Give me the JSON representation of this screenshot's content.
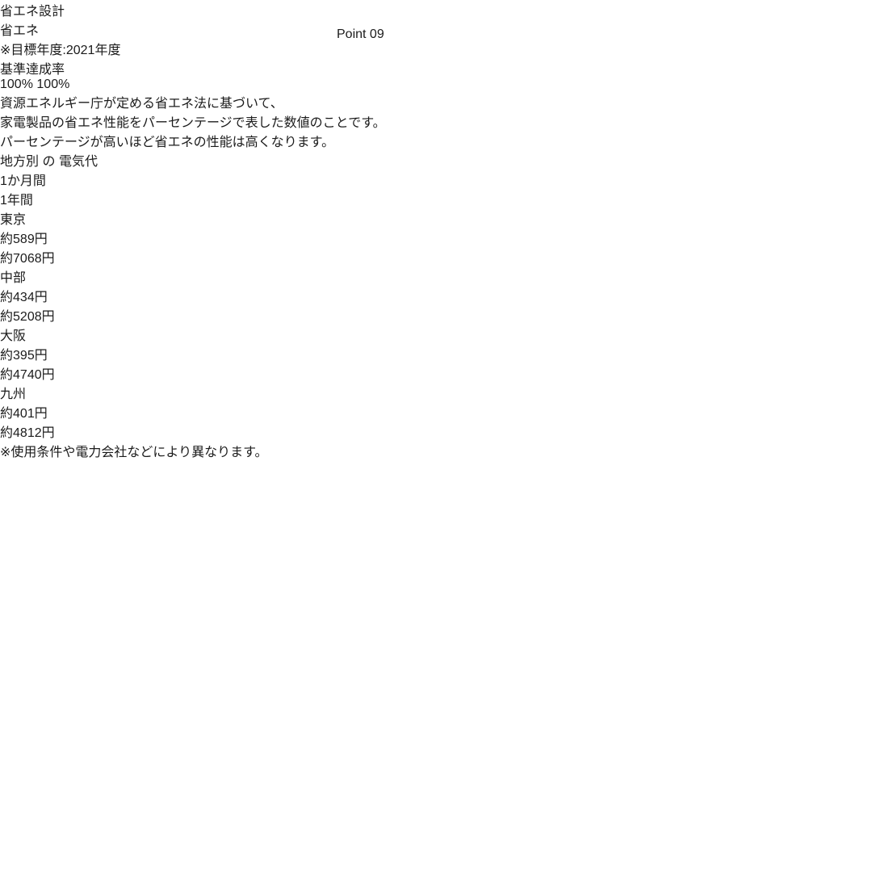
{
  "badge": {
    "point": "Point",
    "number": "09"
  },
  "title": "省エネ設計",
  "banner": {
    "label": "省エネ",
    "note": "※目標年度:2021年度",
    "sublabel": "基準達成率",
    "value": "100",
    "unit": "%"
  },
  "description": {
    "line1": "資源エネルギー庁が定める省エネ法に基づいて、",
    "line2": "家電製品の省エネ性能をパーセンテージで表した数値のことです。",
    "line3": "パーセンテージが高いほど省エネの性能は高くなります。"
  },
  "table": {
    "title_part1": "地方別",
    "title_part2": "の",
    "title_part3": "電気代",
    "headers": {
      "month": "1か月間",
      "year": "1年間"
    },
    "approx": "約",
    "yen": "円",
    "rows": [
      {
        "region": "東京",
        "month": "589",
        "year": "7068"
      },
      {
        "region": "中部",
        "month": "434",
        "year": "5208"
      },
      {
        "region": "大阪",
        "month": "395",
        "year": "4740"
      },
      {
        "region": "九州",
        "month": "401",
        "year": "4812"
      }
    ]
  },
  "footnote": "※使用条件や電力会社などにより異なります。",
  "chart_data": {
    "type": "table",
    "title": "地方別の電気代",
    "columns": [
      "地方",
      "1か月間",
      "1年間"
    ],
    "rows": [
      [
        "東京",
        "約589円",
        "約7068円"
      ],
      [
        "中部",
        "約434円",
        "約5208円"
      ],
      [
        "大阪",
        "約395円",
        "約4740円"
      ],
      [
        "九州",
        "約401円",
        "約4812円"
      ]
    ]
  },
  "colors": {
    "green": "#2e6b55",
    "yellow": "#ebe35c",
    "badge_blue": "#6fb0dd",
    "pill_blue": "#2f509e",
    "grid_blue": "#35549f",
    "cell_blue": "#ccdaee"
  }
}
